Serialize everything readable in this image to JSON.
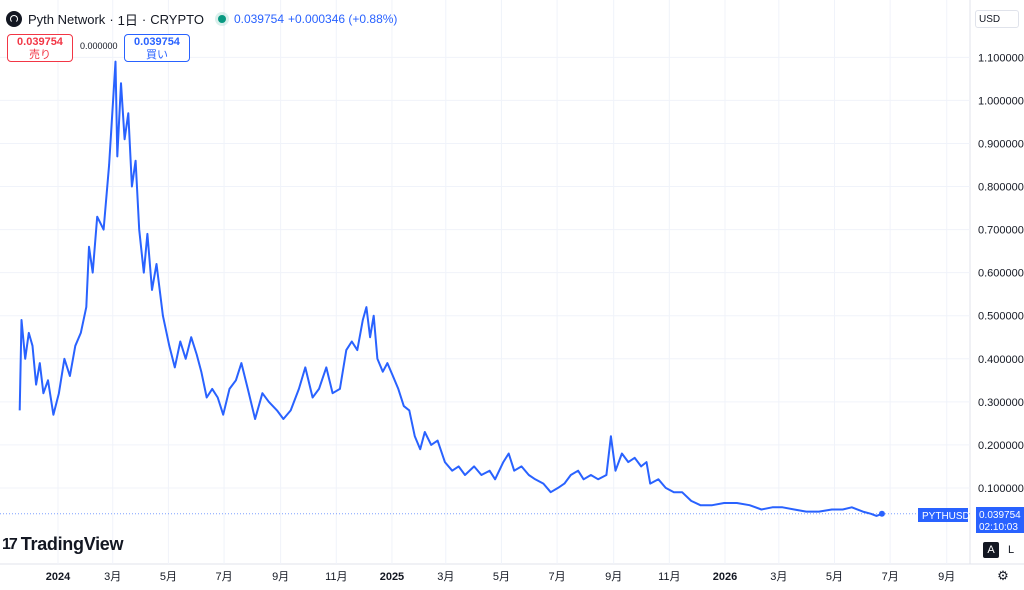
{
  "header": {
    "symbol_name": "Pyth Network",
    "interval": "1日",
    "exchange": "CRYPTO",
    "separator": "·",
    "last_price": "0.039754",
    "change": "+0.000346 (+0.88%)",
    "live_color": "#089981"
  },
  "trade": {
    "sell_price": "0.039754",
    "sell_label": "売り",
    "spread": "0.000000",
    "buy_price": "0.039754",
    "buy_label": "買い"
  },
  "price_scale": {
    "currency": "USD",
    "ticker_label": "PYTHUSD",
    "last_value": "0.039754",
    "countdown": "02:10:03"
  },
  "branding": {
    "logo_mark": "17",
    "logo_text": "TradingView"
  },
  "controls": {
    "auto_label": "A",
    "log_label": "L",
    "settings_icon": "gear-icon"
  },
  "colors": {
    "line": "#2962ff",
    "grid": "#f0f3fa",
    "sell": "#f23645",
    "buy": "#2962ff"
  },
  "chart_data": {
    "type": "line",
    "title": "Pyth Network · 1日 · CRYPTO",
    "xlabel": "",
    "ylabel": "",
    "ylim": [
      0,
      1.15
    ],
    "grid": true,
    "y_ticks": [
      "0.100000",
      "0.200000",
      "0.300000",
      "0.400000",
      "0.500000",
      "0.600000",
      "0.700000",
      "0.800000",
      "0.900000",
      "1.000000",
      "1.100000"
    ],
    "x_ticks": [
      {
        "label": "2024",
        "date": "2024-01-01",
        "bold": true
      },
      {
        "label": "3月",
        "date": "2024-03-01"
      },
      {
        "label": "5月",
        "date": "2024-05-01"
      },
      {
        "label": "7月",
        "date": "2024-07-01"
      },
      {
        "label": "9月",
        "date": "2024-09-01"
      },
      {
        "label": "11月",
        "date": "2024-11-01"
      },
      {
        "label": "2025",
        "date": "2025-01-01",
        "bold": true
      },
      {
        "label": "3月",
        "date": "2025-03-01"
      },
      {
        "label": "5月",
        "date": "2025-05-01"
      },
      {
        "label": "7月",
        "date": "2025-07-01"
      },
      {
        "label": "9月",
        "date": "2025-09-01"
      },
      {
        "label": "11月",
        "date": "2025-11-01"
      },
      {
        "label": "2026",
        "date": "2026-01-01",
        "bold": true
      },
      {
        "label": "3月",
        "date": "2026-03-01"
      },
      {
        "label": "5月",
        "date": "2026-05-01"
      },
      {
        "label": "7月",
        "date": "2026-07-01"
      },
      {
        "label": "9月",
        "date": "2026-09-01"
      }
    ],
    "series": [
      {
        "values": [
          [
            "2023-11-20",
            0.28
          ],
          [
            "2023-11-22",
            0.49
          ],
          [
            "2023-11-26",
            0.4
          ],
          [
            "2023-11-30",
            0.46
          ],
          [
            "2023-12-04",
            0.43
          ],
          [
            "2023-12-08",
            0.34
          ],
          [
            "2023-12-12",
            0.39
          ],
          [
            "2023-12-16",
            0.32
          ],
          [
            "2023-12-21",
            0.35
          ],
          [
            "2023-12-27",
            0.27
          ],
          [
            "2024-01-02",
            0.32
          ],
          [
            "2024-01-08",
            0.4
          ],
          [
            "2024-01-14",
            0.36
          ],
          [
            "2024-01-20",
            0.43
          ],
          [
            "2024-01-26",
            0.46
          ],
          [
            "2024-02-01",
            0.52
          ],
          [
            "2024-02-04",
            0.66
          ],
          [
            "2024-02-08",
            0.6
          ],
          [
            "2024-02-13",
            0.73
          ],
          [
            "2024-02-20",
            0.7
          ],
          [
            "2024-02-26",
            0.85
          ],
          [
            "2024-03-04",
            1.09
          ],
          [
            "2024-03-06",
            0.87
          ],
          [
            "2024-03-10",
            1.04
          ],
          [
            "2024-03-14",
            0.91
          ],
          [
            "2024-03-18",
            0.97
          ],
          [
            "2024-03-22",
            0.8
          ],
          [
            "2024-03-26",
            0.86
          ],
          [
            "2024-03-30",
            0.7
          ],
          [
            "2024-04-04",
            0.6
          ],
          [
            "2024-04-08",
            0.69
          ],
          [
            "2024-04-13",
            0.56
          ],
          [
            "2024-04-18",
            0.62
          ],
          [
            "2024-04-25",
            0.5
          ],
          [
            "2024-05-02",
            0.43
          ],
          [
            "2024-05-08",
            0.38
          ],
          [
            "2024-05-14",
            0.44
          ],
          [
            "2024-05-20",
            0.4
          ],
          [
            "2024-05-26",
            0.45
          ],
          [
            "2024-06-01",
            0.41
          ],
          [
            "2024-06-06",
            0.37
          ],
          [
            "2024-06-12",
            0.31
          ],
          [
            "2024-06-18",
            0.33
          ],
          [
            "2024-06-24",
            0.31
          ],
          [
            "2024-06-30",
            0.27
          ],
          [
            "2024-07-07",
            0.33
          ],
          [
            "2024-07-14",
            0.35
          ],
          [
            "2024-07-20",
            0.39
          ],
          [
            "2024-07-27",
            0.33
          ],
          [
            "2024-08-04",
            0.26
          ],
          [
            "2024-08-12",
            0.32
          ],
          [
            "2024-08-19",
            0.3
          ],
          [
            "2024-08-28",
            0.28
          ],
          [
            "2024-09-04",
            0.26
          ],
          [
            "2024-09-12",
            0.28
          ],
          [
            "2024-09-21",
            0.33
          ],
          [
            "2024-09-28",
            0.38
          ],
          [
            "2024-10-06",
            0.31
          ],
          [
            "2024-10-13",
            0.33
          ],
          [
            "2024-10-21",
            0.38
          ],
          [
            "2024-10-28",
            0.32
          ],
          [
            "2024-11-05",
            0.33
          ],
          [
            "2024-11-12",
            0.42
          ],
          [
            "2024-11-18",
            0.44
          ],
          [
            "2024-11-24",
            0.42
          ],
          [
            "2024-11-30",
            0.49
          ],
          [
            "2024-12-04",
            0.52
          ],
          [
            "2024-12-08",
            0.45
          ],
          [
            "2024-12-12",
            0.5
          ],
          [
            "2024-12-16",
            0.4
          ],
          [
            "2024-12-22",
            0.37
          ],
          [
            "2024-12-27",
            0.39
          ],
          [
            "2025-01-02",
            0.36
          ],
          [
            "2025-01-08",
            0.33
          ],
          [
            "2025-01-14",
            0.29
          ],
          [
            "2025-01-20",
            0.28
          ],
          [
            "2025-01-26",
            0.22
          ],
          [
            "2025-02-01",
            0.19
          ],
          [
            "2025-02-06",
            0.23
          ],
          [
            "2025-02-13",
            0.2
          ],
          [
            "2025-02-20",
            0.21
          ],
          [
            "2025-02-28",
            0.16
          ],
          [
            "2025-03-08",
            0.14
          ],
          [
            "2025-03-15",
            0.15
          ],
          [
            "2025-03-22",
            0.13
          ],
          [
            "2025-04-01",
            0.15
          ],
          [
            "2025-04-09",
            0.13
          ],
          [
            "2025-04-18",
            0.14
          ],
          [
            "2025-04-24",
            0.12
          ],
          [
            "2025-05-03",
            0.16
          ],
          [
            "2025-05-09",
            0.18
          ],
          [
            "2025-05-15",
            0.14
          ],
          [
            "2025-05-23",
            0.15
          ],
          [
            "2025-05-31",
            0.13
          ],
          [
            "2025-06-07",
            0.12
          ],
          [
            "2025-06-16",
            0.11
          ],
          [
            "2025-06-24",
            0.09
          ],
          [
            "2025-07-02",
            0.1
          ],
          [
            "2025-07-09",
            0.11
          ],
          [
            "2025-07-16",
            0.13
          ],
          [
            "2025-07-24",
            0.14
          ],
          [
            "2025-07-30",
            0.12
          ],
          [
            "2025-08-07",
            0.13
          ],
          [
            "2025-08-15",
            0.12
          ],
          [
            "2025-08-24",
            0.13
          ],
          [
            "2025-08-29",
            0.22
          ],
          [
            "2025-09-03",
            0.14
          ],
          [
            "2025-09-10",
            0.18
          ],
          [
            "2025-09-17",
            0.16
          ],
          [
            "2025-09-24",
            0.17
          ],
          [
            "2025-10-01",
            0.15
          ],
          [
            "2025-10-07",
            0.16
          ],
          [
            "2025-10-11",
            0.11
          ],
          [
            "2025-10-20",
            0.12
          ],
          [
            "2025-10-28",
            0.1
          ],
          [
            "2025-11-06",
            0.09
          ],
          [
            "2025-11-15",
            0.09
          ],
          [
            "2025-11-25",
            0.07
          ],
          [
            "2025-12-05",
            0.06
          ],
          [
            "2025-12-18",
            0.06
          ],
          [
            "2025-12-31",
            0.065
          ],
          [
            "2026-01-14",
            0.065
          ],
          [
            "2026-01-28",
            0.06
          ],
          [
            "2026-02-10",
            0.05
          ],
          [
            "2026-02-22",
            0.055
          ],
          [
            "2026-03-05",
            0.055
          ],
          [
            "2026-03-18",
            0.05
          ],
          [
            "2026-03-31",
            0.045
          ],
          [
            "2026-04-14",
            0.045
          ],
          [
            "2026-04-28",
            0.05
          ],
          [
            "2026-05-10",
            0.05
          ],
          [
            "2026-05-20",
            0.055
          ],
          [
            "2026-06-01",
            0.045
          ],
          [
            "2026-06-10",
            0.04
          ],
          [
            "2026-06-16",
            0.035
          ],
          [
            "2026-06-22",
            0.04
          ]
        ]
      }
    ]
  }
}
